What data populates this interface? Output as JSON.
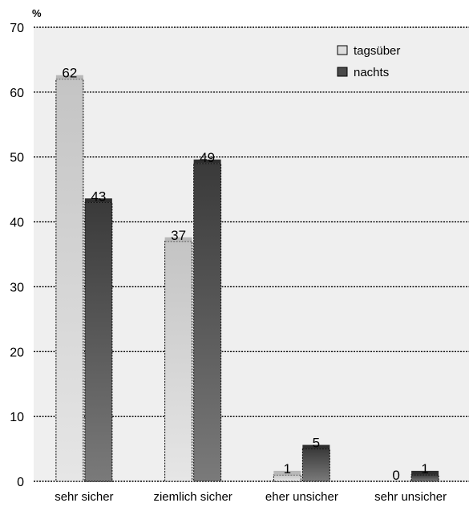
{
  "chart_data": {
    "type": "bar",
    "ylabel": "%",
    "categories": [
      "sehr sicher",
      "ziemlich sicher",
      "eher unsicher",
      "sehr unsicher"
    ],
    "series": [
      {
        "name": "tagsüber",
        "values": [
          62,
          37,
          1,
          0
        ],
        "color": "#cfcfcf"
      },
      {
        "name": "nachts",
        "values": [
          43,
          49,
          5,
          1
        ],
        "color": "#4a4a4a"
      }
    ],
    "yticks": [
      0,
      10,
      20,
      30,
      40,
      50,
      60,
      70
    ],
    "ylim": [
      0,
      70
    ],
    "grid": true,
    "legend": "top-right",
    "plot_background": "#efefef"
  }
}
